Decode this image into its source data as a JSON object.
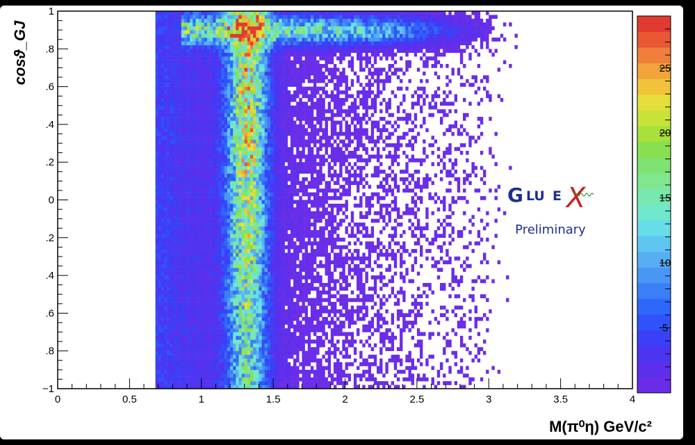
{
  "chart_data": {
    "type": "heatmap",
    "xlabel": "M(π⁰η) GeV/c²",
    "ylabel": "cosϑ_GJ",
    "xlim": [
      0,
      4
    ],
    "ylim": [
      -1,
      1
    ],
    "xticks": [
      "0",
      "0.5",
      "1",
      "1.5",
      "2",
      "2.5",
      "3",
      "3.5",
      "4"
    ],
    "yticks": [
      "−1",
      ".8",
      ".6",
      ".4",
      ".2",
      "0",
      ".2",
      ".4",
      ".6",
      ".8",
      "1"
    ],
    "xtick_values": [
      0,
      0.5,
      1,
      1.5,
      2,
      2.5,
      3,
      3.5,
      4
    ],
    "ytick_values": [
      -1,
      -0.8,
      -0.6,
      -0.4,
      -0.2,
      0,
      0.2,
      0.4,
      0.6,
      0.8,
      1
    ],
    "zlim": [
      0,
      29
    ],
    "zticks": [
      "5",
      "10",
      "15",
      "20",
      "25"
    ],
    "ztick_values": [
      5,
      10,
      15,
      20,
      25
    ],
    "threshold_mass": 0.68,
    "features": [
      {
        "kind": "vertical_band",
        "mass": 1.32,
        "cos_range": [
          -0.9,
          1.0
        ],
        "peak_counts": 25
      },
      {
        "kind": "horizontal_band",
        "cos": 0.9,
        "mass_range": [
          0.9,
          3.3
        ],
        "peak_counts": 20
      }
    ],
    "palette": [
      "#6a2de8",
      "#5b2fec",
      "#4b35f2",
      "#3a40f7",
      "#2f52fa",
      "#2f67fb",
      "#3a7ff8",
      "#4a96f5",
      "#58aef3",
      "#5fc6f1",
      "#66dde9",
      "#6fe8cd",
      "#79e8ae",
      "#7fe78f",
      "#80e270",
      "#88e04f",
      "#a8e03c",
      "#c8e23a",
      "#e4df3a",
      "#f2c33a",
      "#f2a43a",
      "#ef7f3a",
      "#e95735",
      "#e23a2e"
    ],
    "grid": false,
    "legend": "none"
  },
  "logo": {
    "g": "G",
    "lu": "LU",
    "e": "E",
    "x": "X",
    "subtitle": "Preliminary",
    "color_main": "#1f2f8f",
    "color_x": "#c8201e"
  }
}
